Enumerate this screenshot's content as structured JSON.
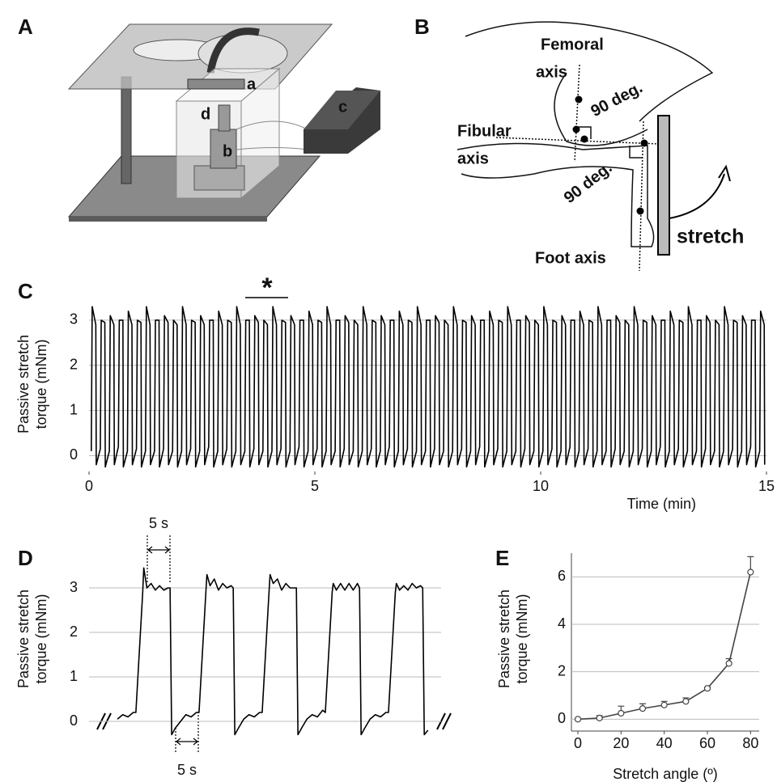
{
  "panels": {
    "A": {
      "label": "A",
      "parts": [
        "a",
        "b",
        "c",
        "d"
      ]
    },
    "B": {
      "label": "B",
      "femoral": [
        "Femoral",
        "axis"
      ],
      "fibular": [
        "Fibular",
        "axis"
      ],
      "angles": [
        "90 deg.",
        "90 deg."
      ],
      "foot": "Foot axis",
      "stretch": "stretch"
    }
  },
  "chart_data": [
    {
      "type": "line",
      "label": "C",
      "ylabel": [
        "Passive stretch",
        "torque (mNm)"
      ],
      "xlabel": "Time (min)",
      "annotations": [
        "*"
      ],
      "xlim": [
        0,
        15
      ],
      "ylim": [
        -0.35,
        3.5
      ],
      "xticks": [
        0,
        5,
        10,
        15
      ],
      "yticks": [
        0,
        1,
        2,
        3
      ],
      "grid": true,
      "x": [
        0.05,
        0.07,
        0.15,
        0.16,
        0.25,
        0.27,
        0.35,
        0.36,
        0.45,
        0.47,
        0.55,
        0.56,
        0.65,
        0.67,
        0.75,
        0.76,
        0.85,
        0.87,
        0.95,
        0.96,
        1.05,
        1.07,
        1.15,
        1.16,
        1.25,
        1.27,
        1.35,
        1.36,
        1.45,
        1.47,
        1.55,
        1.56,
        1.65,
        1.67,
        1.75,
        1.76,
        1.85,
        1.87,
        1.95,
        1.96,
        2.05,
        2.07,
        2.15,
        2.16,
        2.25,
        2.27,
        2.35,
        2.36,
        2.45,
        2.47,
        2.55,
        2.56,
        2.65,
        2.67,
        2.75,
        2.76,
        2.85,
        2.87,
        2.95,
        2.96,
        3.05,
        3.07,
        3.15,
        3.16,
        3.25,
        3.27,
        3.35,
        3.36,
        3.45,
        3.47,
        3.55,
        3.56,
        3.65,
        3.67,
        3.75,
        3.76,
        3.85,
        3.87,
        3.95,
        3.96,
        4.05,
        4.07,
        4.15,
        4.16,
        4.25,
        4.27,
        4.35,
        4.36,
        4.45,
        4.47,
        4.55,
        4.56,
        4.65,
        4.67,
        4.75,
        4.76,
        4.85,
        4.87,
        4.95,
        4.96,
        5.05,
        5.07,
        5.15,
        5.16,
        5.25,
        5.27,
        5.35,
        5.36,
        5.45,
        5.47,
        5.55,
        5.56,
        5.65,
        5.67,
        5.75,
        5.76,
        5.85,
        5.87,
        5.95,
        5.96,
        6.05,
        6.07,
        6.15,
        6.16,
        6.25,
        6.27,
        6.35,
        6.36,
        6.45,
        6.47,
        6.55,
        6.56,
        6.65,
        6.67,
        6.75,
        6.76,
        6.85,
        6.87,
        6.95,
        6.96,
        7.05,
        7.07,
        7.15,
        7.16,
        7.25,
        7.27,
        7.35,
        7.36,
        7.45,
        7.47,
        7.55,
        7.56,
        7.65,
        7.67,
        7.75,
        7.76,
        7.85,
        7.87,
        7.95,
        7.96,
        8.05,
        8.07,
        8.15,
        8.16,
        8.25,
        8.27,
        8.35,
        8.36,
        8.45,
        8.47,
        8.55,
        8.56,
        8.65,
        8.67,
        8.75,
        8.76,
        8.85,
        8.87,
        8.95,
        8.96,
        9.05,
        9.07,
        9.15,
        9.16,
        9.25,
        9.27,
        9.35,
        9.36,
        9.45,
        9.47,
        9.55,
        9.56,
        9.65,
        9.67,
        9.75,
        9.76,
        9.85,
        9.87,
        9.95,
        9.96,
        10.05,
        10.07,
        10.15,
        10.16,
        10.25,
        10.27,
        10.35,
        10.36,
        10.45,
        10.47,
        10.55,
        10.56,
        10.65,
        10.67,
        10.75,
        10.76,
        10.85,
        10.87,
        10.95,
        10.96,
        11.05,
        11.07,
        11.15,
        11.16,
        11.25,
        11.27,
        11.35,
        11.36,
        11.45,
        11.47,
        11.55,
        11.56,
        11.65,
        11.67,
        11.75,
        11.76,
        11.85,
        11.87,
        11.95,
        11.96,
        12.05,
        12.07,
        12.15,
        12.16,
        12.25,
        12.27,
        12.35,
        12.36,
        12.45,
        12.47,
        12.55,
        12.56,
        12.65,
        12.67,
        12.75,
        12.76,
        12.85,
        12.87,
        12.95,
        12.96,
        13.05,
        13.07,
        13.15,
        13.16,
        13.25,
        13.27,
        13.35,
        13.36,
        13.45,
        13.47,
        13.55,
        13.56,
        13.65,
        13.67,
        13.75,
        13.76,
        13.85,
        13.87,
        13.95,
        13.96,
        14.05,
        14.07,
        14.15,
        14.16,
        14.25,
        14.27,
        14.35,
        14.36,
        14.45,
        14.47,
        14.55,
        14.56,
        14.65,
        14.67,
        14.75,
        14.76,
        14.85,
        14.87,
        14.95,
        14.96
      ],
      "series": [
        {
          "color": "#000000",
          "values": [
            0.1,
            3.3,
            2.9,
            -0.2,
            0.15,
            3.0,
            2.95,
            -0.25,
            0.1,
            3.1,
            2.9,
            -0.2,
            0.2,
            3.0,
            3.0,
            -0.25,
            0.1,
            3.2,
            2.9,
            -0.2,
            0.15,
            3.0,
            2.95,
            -0.25,
            0.1,
            3.3,
            2.9,
            -0.2,
            0.1,
            3.0,
            3.0,
            -0.25,
            0.15,
            3.1,
            2.95,
            -0.2,
            0.1,
            3.0,
            2.9,
            -0.25,
            0.1,
            3.3,
            2.9,
            -0.2,
            0.15,
            3.0,
            2.95,
            -0.25,
            0.1,
            3.1,
            2.9,
            -0.2,
            0.2,
            3.0,
            3.0,
            -0.25,
            0.1,
            3.2,
            2.9,
            -0.2,
            0.15,
            3.0,
            2.95,
            -0.25,
            0.1,
            3.3,
            2.9,
            -0.2,
            0.1,
            3.0,
            3.0,
            -0.25,
            0.15,
            3.1,
            2.95,
            -0.2,
            0.1,
            3.0,
            2.9,
            -0.25,
            0.1,
            3.3,
            2.9,
            -0.2,
            0.15,
            3.0,
            2.95,
            -0.25,
            0.1,
            3.1,
            2.9,
            -0.2,
            0.2,
            3.0,
            3.0,
            -0.25,
            0.1,
            3.2,
            2.9,
            -0.2,
            0.15,
            3.0,
            2.95,
            -0.25,
            0.1,
            3.3,
            2.9,
            -0.2,
            0.1,
            3.0,
            3.0,
            -0.25,
            0.15,
            3.1,
            2.95,
            -0.2,
            0.1,
            3.0,
            2.9,
            -0.25,
            0.1,
            3.3,
            2.9,
            -0.2,
            0.15,
            3.0,
            2.95,
            -0.25,
            0.1,
            3.1,
            2.9,
            -0.2,
            0.2,
            3.0,
            3.0,
            -0.25,
            0.1,
            3.2,
            2.9,
            -0.2,
            0.15,
            3.0,
            2.95,
            -0.25,
            0.1,
            3.3,
            2.9,
            -0.2,
            0.1,
            3.0,
            3.0,
            -0.25,
            0.15,
            3.1,
            2.95,
            -0.2,
            0.1,
            3.0,
            2.9,
            -0.25,
            0.1,
            3.3,
            2.9,
            -0.2,
            0.15,
            3.0,
            2.95,
            -0.25,
            0.1,
            3.1,
            2.9,
            -0.2,
            0.2,
            3.0,
            3.0,
            -0.25,
            0.1,
            3.2,
            2.9,
            -0.2,
            0.15,
            3.0,
            2.95,
            -0.25,
            0.1,
            3.3,
            2.9,
            -0.2,
            0.1,
            3.0,
            3.0,
            -0.25,
            0.15,
            3.1,
            2.95,
            -0.2,
            0.1,
            3.0,
            2.9,
            -0.25,
            0.1,
            3.3,
            2.9,
            -0.2,
            0.15,
            3.0,
            2.95,
            -0.25,
            0.1,
            3.1,
            2.9,
            -0.2,
            0.2,
            3.0,
            3.0,
            -0.25,
            0.1,
            3.2,
            2.9,
            -0.2,
            0.15,
            3.0,
            2.95,
            -0.25,
            0.1,
            3.3,
            2.9,
            -0.2,
            0.1,
            3.0,
            3.0,
            -0.25,
            0.15,
            3.1,
            2.95,
            -0.2,
            0.1,
            3.0,
            2.9,
            -0.25,
            0.1,
            3.3,
            2.9,
            -0.2,
            0.15,
            3.0,
            2.95,
            -0.25,
            0.1,
            3.1,
            2.9,
            -0.2,
            0.2,
            3.0,
            3.0,
            -0.25,
            0.1,
            3.2,
            2.9,
            -0.2,
            0.15,
            3.0,
            2.95,
            -0.25,
            0.1,
            3.3,
            2.9,
            -0.2,
            0.1,
            3.0,
            3.0,
            -0.25,
            0.15,
            3.1,
            2.95,
            -0.2,
            0.1,
            3.0,
            2.9,
            -0.25,
            0.1,
            3.3,
            2.9,
            -0.2,
            0.15,
            3.0,
            2.95,
            -0.25,
            0.1,
            3.1,
            2.9,
            -0.2,
            0.2,
            3.0,
            3.0,
            -0.25,
            0.1,
            3.2,
            2.9,
            -0.2
          ]
        }
      ]
    },
    {
      "type": "line",
      "label": "D",
      "ylabel": [
        "Passive stretch",
        "torque (mNm)"
      ],
      "annotations": [
        "5 s",
        "5 s"
      ],
      "xlim": [
        -5.4,
        61.5
      ],
      "ylim": [
        -0.4,
        3.6
      ],
      "yticks": [
        0,
        1,
        2,
        3
      ],
      "grid": true,
      "x": [
        0,
        1,
        2,
        3,
        3.5,
        4.8,
        5,
        5.6,
        6.4,
        7.2,
        8,
        8.8,
        9.6,
        10,
        10.3,
        11,
        12,
        13,
        14,
        15,
        15.5,
        16.8,
        17,
        17.6,
        18.4,
        19.2,
        20,
        20.8,
        21.6,
        22,
        22.3,
        23,
        24,
        25,
        26,
        27,
        27.5,
        28.8,
        29,
        29.6,
        30.4,
        31.2,
        32,
        32.8,
        33.6,
        34,
        34.3,
        35,
        36,
        37,
        38,
        39,
        39.5,
        40.8,
        41,
        41.6,
        42.4,
        43.2,
        44,
        44.8,
        45.6,
        46,
        46.3,
        47,
        48,
        49,
        50,
        51,
        51.5,
        52.8,
        53,
        53.6,
        54.4,
        55.2,
        56,
        56.8,
        57.6,
        58,
        58.3,
        59
      ],
      "series": [
        {
          "color": "#000000",
          "values": [
            0.05,
            0.15,
            0.1,
            0.2,
            0.2,
            2.9,
            3.45,
            3.0,
            3.1,
            2.95,
            3.05,
            2.95,
            3.0,
            3.0,
            -0.3,
            -0.15,
            0.0,
            0.15,
            0.1,
            0.2,
            0.2,
            2.9,
            3.3,
            3.05,
            3.2,
            2.95,
            3.1,
            3.0,
            3.05,
            3.0,
            -0.3,
            -0.15,
            0.05,
            0.15,
            0.1,
            0.2,
            0.2,
            2.9,
            3.3,
            3.1,
            3.2,
            2.95,
            3.1,
            3.0,
            3.0,
            3.0,
            -0.3,
            -0.15,
            0.05,
            0.15,
            0.1,
            0.25,
            0.2,
            2.9,
            3.1,
            2.95,
            3.1,
            2.95,
            3.1,
            2.95,
            3.1,
            3.0,
            -0.3,
            -0.15,
            0.05,
            0.15,
            0.1,
            0.2,
            0.2,
            2.9,
            3.1,
            2.95,
            3.05,
            2.95,
            3.1,
            3.0,
            3.05,
            3.0,
            -0.3,
            -0.2
          ]
        }
      ]
    },
    {
      "type": "line",
      "label": "E",
      "ylabel": [
        "Passive stretch",
        "torque (mNm)"
      ],
      "xlabel": "Stretch angle (º)",
      "xlim": [
        -3,
        84
      ],
      "ylim": [
        -0.5,
        7
      ],
      "xticks": [
        0,
        20,
        40,
        60,
        80
      ],
      "yticks": [
        0,
        2,
        4,
        6
      ],
      "grid": true,
      "markers": true,
      "x": [
        0,
        10,
        20,
        30,
        40,
        50,
        60,
        70,
        80
      ],
      "series": [
        {
          "color": "#444444",
          "values": [
            0,
            0.05,
            0.25,
            0.45,
            0.6,
            0.75,
            1.3,
            2.35,
            6.2
          ],
          "errors": [
            0,
            0.1,
            0.3,
            0.2,
            0.15,
            0.15,
            0.05,
            0.2,
            0.65
          ]
        }
      ]
    }
  ]
}
